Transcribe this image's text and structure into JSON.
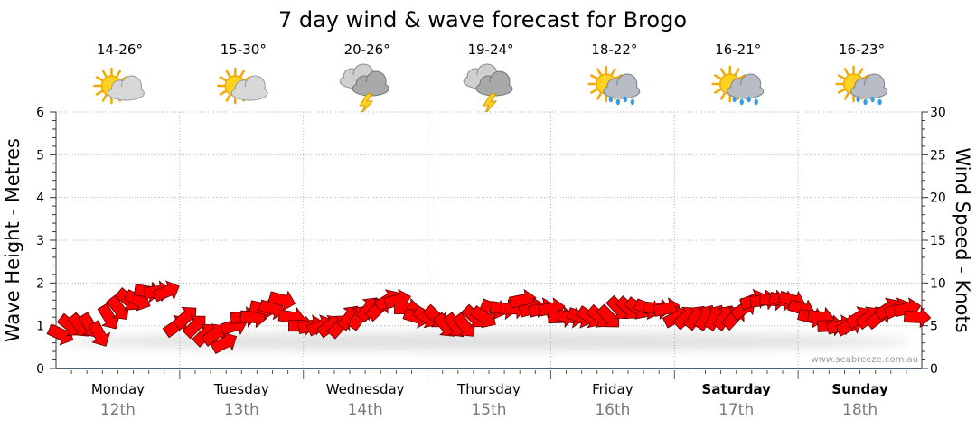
{
  "chart_data": {
    "type": "line",
    "title": "7 day wind & wave forecast for Brogo",
    "ylabel_left": "Wave Height - Metres",
    "ylabel_right": "Wind Speed - Knots",
    "ylim_left": [
      0,
      6
    ],
    "yticks_left": [
      "0",
      "1",
      "2",
      "3",
      "4",
      "5",
      "6"
    ],
    "ylim_right": [
      0,
      30
    ],
    "yticks_right": [
      "0",
      "5",
      "10",
      "15",
      "20",
      "25",
      "30"
    ],
    "grid": true,
    "days": [
      {
        "name": "Monday",
        "date": "12th",
        "temp": "14-26°",
        "icon": "partly-cloudy-icon",
        "bold": false
      },
      {
        "name": "Tuesday",
        "date": "13th",
        "temp": "15-30°",
        "icon": "partly-cloudy-icon",
        "bold": false
      },
      {
        "name": "Wednesday",
        "date": "14th",
        "temp": "20-26°",
        "icon": "thunderstorm-icon",
        "bold": false
      },
      {
        "name": "Thursday",
        "date": "15th",
        "temp": "19-24°",
        "icon": "thunderstorm-icon",
        "bold": false
      },
      {
        "name": "Friday",
        "date": "16th",
        "temp": "18-22°",
        "icon": "sun-showers-icon",
        "bold": false
      },
      {
        "name": "Saturday",
        "date": "17th",
        "temp": "16-21°",
        "icon": "sun-showers-icon",
        "bold": true
      },
      {
        "name": "Sunday",
        "date": "18th",
        "temp": "16-23°",
        "icon": "sun-showers-icon",
        "bold": true
      }
    ],
    "wind_series": {
      "color": "#ff0000",
      "unit": "knots",
      "speeds": [
        4,
        5,
        5,
        5,
        4,
        6,
        7,
        8,
        8,
        9,
        9,
        9,
        5,
        6,
        5,
        4,
        4,
        3,
        5,
        6,
        6,
        7,
        7,
        8,
        6,
        5,
        5,
        5,
        5,
        5,
        6,
        6,
        7,
        7,
        8,
        8,
        7,
        6,
        6,
        6,
        5,
        5,
        5,
        6,
        6,
        7,
        7,
        7,
        8,
        7,
        7,
        7,
        6,
        6,
        6,
        6,
        6,
        6,
        7,
        7,
        7,
        7,
        7,
        7,
        6,
        6,
        6,
        6,
        6,
        6,
        6,
        7,
        8,
        8,
        8,
        8,
        8,
        7,
        6,
        6,
        5,
        5,
        5,
        6,
        6,
        6,
        7,
        7,
        7,
        6
      ]
    },
    "watermark": "www.seabreeze.com.au"
  }
}
